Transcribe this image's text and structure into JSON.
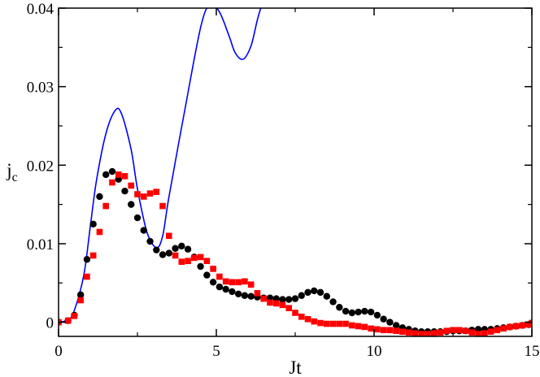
{
  "chart_data": {
    "type": "line",
    "xlabel": "Jt",
    "ylabel_main": "j",
    "ylabel_sub": "c",
    "xlim": [
      0,
      15
    ],
    "ylim": [
      -0.0018,
      0.04
    ],
    "x_ticks": [
      0,
      5,
      10,
      15
    ],
    "x_tick_labels": [
      "0",
      "5",
      "10",
      "15"
    ],
    "y_ticks": [
      0,
      0.01,
      0.02,
      0.03,
      0.04
    ],
    "y_tick_labels": [
      "0",
      "0.01",
      "0.02",
      "0.03",
      "0.04"
    ],
    "grid": false,
    "series": [
      {
        "style": "line",
        "color": "#0000ff",
        "x": [
          0,
          0.3,
          0.5,
          0.8,
          1.0,
          1.2,
          1.5,
          1.8,
          2.0,
          2.3,
          2.5,
          2.8,
          3.1,
          3.3,
          3.5,
          4.0,
          4.5,
          4.8,
          5.1,
          5.4,
          5.6,
          5.85,
          6.1,
          6.3,
          6.45,
          6.6
        ],
        "y": [
          0,
          0.0003,
          0.0015,
          0.006,
          0.012,
          0.018,
          0.024,
          0.027,
          0.0265,
          0.022,
          0.017,
          0.0115,
          0.0095,
          0.011,
          0.016,
          0.027,
          0.0375,
          0.0405,
          0.0395,
          0.0365,
          0.0343,
          0.0335,
          0.0352,
          0.0385,
          0.0405,
          0.042
        ]
      },
      {
        "style": "markers",
        "marker": "circle",
        "color": "#000000",
        "x": [
          0,
          0.3,
          0.5,
          0.7,
          0.9,
          1.1,
          1.3,
          1.5,
          1.7,
          1.9,
          2.1,
          2.3,
          2.5,
          2.7,
          2.9,
          3.1,
          3.3,
          3.5,
          3.7,
          3.9,
          4.1,
          4.3,
          4.5,
          4.7,
          4.9,
          5.1,
          5.3,
          5.5,
          5.7,
          5.9,
          6.1,
          6.3,
          6.5,
          6.7,
          6.9,
          7.1,
          7.3,
          7.5,
          7.7,
          7.9,
          8.1,
          8.3,
          8.5,
          8.7,
          8.9,
          9.1,
          9.3,
          9.5,
          9.7,
          9.9,
          10.1,
          10.3,
          10.5,
          10.7,
          10.9,
          11.1,
          11.3,
          11.5,
          11.7,
          11.9,
          12.1,
          12.3,
          12.5,
          12.7,
          12.9,
          13.1,
          13.3,
          13.5,
          13.7,
          13.9,
          14.1,
          14.3,
          14.5,
          14.7,
          14.9,
          15.0
        ],
        "y": [
          0,
          0.0002,
          0.0009,
          0.0035,
          0.008,
          0.0125,
          0.016,
          0.0188,
          0.0192,
          0.0182,
          0.0167,
          0.015,
          0.0133,
          0.0117,
          0.0103,
          0.0092,
          0.0086,
          0.0088,
          0.0094,
          0.0097,
          0.0093,
          0.0083,
          0.0071,
          0.006,
          0.0051,
          0.0045,
          0.0042,
          0.0039,
          0.0036,
          0.0034,
          0.0033,
          0.0032,
          0.0031,
          0.0031,
          0.003,
          0.0029,
          0.0029,
          0.003,
          0.0034,
          0.0038,
          0.004,
          0.0038,
          0.0033,
          0.0026,
          0.0019,
          0.0014,
          0.0012,
          0.0013,
          0.0014,
          0.0013,
          0.0009,
          0.0004,
          0.0,
          -0.0004,
          -0.0007,
          -0.0009,
          -0.0011,
          -0.0012,
          -0.0012,
          -0.0012,
          -0.0012,
          -0.0012,
          -0.0011,
          -0.0011,
          -0.0011,
          -0.001,
          -0.0009,
          -0.0009,
          -0.0009,
          -0.0008,
          -0.0007,
          -0.0006,
          -0.0005,
          -0.0004,
          -0.0003,
          -0.0001
        ]
      },
      {
        "style": "markers",
        "marker": "square",
        "color": "#ff0000",
        "x": [
          0,
          0.3,
          0.5,
          0.7,
          0.9,
          1.1,
          1.3,
          1.5,
          1.7,
          1.9,
          2.1,
          2.3,
          2.5,
          2.7,
          2.9,
          3.1,
          3.3,
          3.5,
          3.7,
          3.9,
          4.1,
          4.3,
          4.5,
          4.7,
          4.9,
          5.1,
          5.3,
          5.5,
          5.7,
          5.9,
          6.1,
          6.3,
          6.5,
          6.7,
          6.9,
          7.1,
          7.3,
          7.5,
          7.7,
          7.9,
          8.1,
          8.3,
          8.5,
          8.7,
          8.9,
          9.1,
          9.3,
          9.5,
          9.7,
          9.9,
          10.1,
          10.3,
          10.5,
          10.7,
          10.9,
          11.1,
          11.3,
          11.5,
          11.7,
          11.9,
          12.1,
          12.3,
          12.5,
          12.7,
          12.9,
          13.1,
          13.3,
          13.5,
          13.7,
          13.9,
          14.1,
          14.3,
          14.5,
          14.7,
          14.9,
          15.0
        ],
        "y": [
          0,
          0.0002,
          0.0008,
          0.0028,
          0.0058,
          0.0085,
          0.0115,
          0.0148,
          0.0178,
          0.0188,
          0.0186,
          0.0174,
          0.0163,
          0.016,
          0.0164,
          0.0166,
          0.0148,
          0.011,
          0.0085,
          0.0077,
          0.0078,
          0.0082,
          0.0083,
          0.0078,
          0.0068,
          0.0058,
          0.0052,
          0.0051,
          0.0051,
          0.0052,
          0.0048,
          0.0037,
          0.003,
          0.0025,
          0.0024,
          0.0022,
          0.0018,
          0.0012,
          0.0007,
          0.0004,
          0.0001,
          -0.0001,
          -0.0002,
          -0.0002,
          -0.0002,
          -0.0002,
          -0.0004,
          -0.0005,
          -0.0006,
          -0.0008,
          -0.0009,
          -0.001,
          -0.001,
          -0.0011,
          -0.0012,
          -0.0013,
          -0.0014,
          -0.0015,
          -0.0015,
          -0.0014,
          -0.0013,
          -0.0011,
          -0.001,
          -0.001,
          -0.0011,
          -0.0013,
          -0.0015,
          -0.0014,
          -0.0012,
          -0.001,
          -0.0008,
          -0.0006,
          -0.0005,
          -0.0004,
          -0.0003,
          -0.0001
        ]
      }
    ]
  }
}
